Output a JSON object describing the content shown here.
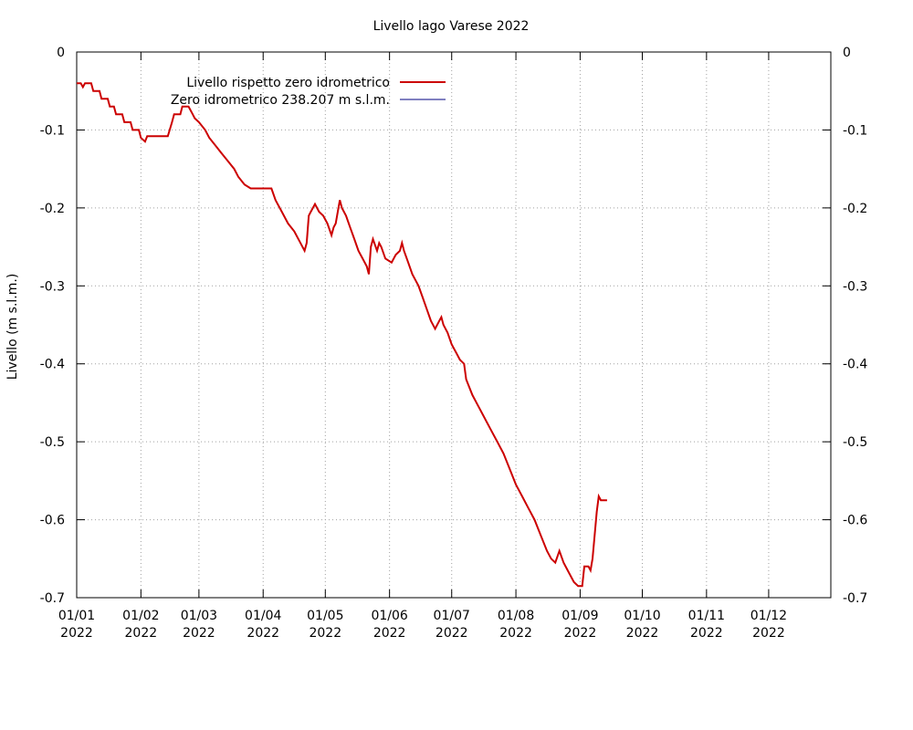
{
  "chart_data": {
    "type": "line",
    "title": "Livello lago Varese 2022",
    "ylabel": "Livello (m s.l.m.)",
    "xlabel": "",
    "ylim": [
      -0.7,
      0
    ],
    "xlim": [
      "2022-01-01",
      "2022-12-31"
    ],
    "y_ticks": [
      "0",
      "-0.1",
      "-0.2",
      "-0.3",
      "-0.4",
      "-0.5",
      "-0.6",
      "-0.7"
    ],
    "y_tick_values": [
      0,
      -0.1,
      -0.2,
      -0.3,
      -0.4,
      -0.5,
      -0.6,
      -0.7
    ],
    "x_ticks": [
      {
        "date": "2022-01-01",
        "label1": "01/01",
        "label2": "2022"
      },
      {
        "date": "2022-02-01",
        "label1": "01/02",
        "label2": "2022"
      },
      {
        "date": "2022-03-01",
        "label1": "01/03",
        "label2": "2022"
      },
      {
        "date": "2022-04-01",
        "label1": "01/04",
        "label2": "2022"
      },
      {
        "date": "2022-05-01",
        "label1": "01/05",
        "label2": "2022"
      },
      {
        "date": "2022-06-01",
        "label1": "01/06",
        "label2": "2022"
      },
      {
        "date": "2022-07-01",
        "label1": "01/07",
        "label2": "2022"
      },
      {
        "date": "2022-08-01",
        "label1": "01/08",
        "label2": "2022"
      },
      {
        "date": "2022-09-01",
        "label1": "01/09",
        "label2": "2022"
      },
      {
        "date": "2022-10-01",
        "label1": "01/10",
        "label2": "2022"
      },
      {
        "date": "2022-11-01",
        "label1": "01/11",
        "label2": "2022"
      },
      {
        "date": "2022-12-01",
        "label1": "01/12",
        "label2": "2022"
      }
    ],
    "grid": true,
    "legend_position": "top-left",
    "series": [
      {
        "name": "Livello rispetto zero idrometrico",
        "color": "#cc0000",
        "points": [
          [
            "2022-01-01",
            -0.04
          ],
          [
            "2022-01-03",
            -0.04
          ],
          [
            "2022-01-04",
            -0.045
          ],
          [
            "2022-01-05",
            -0.04
          ],
          [
            "2022-01-08",
            -0.04
          ],
          [
            "2022-01-09",
            -0.05
          ],
          [
            "2022-01-12",
            -0.05
          ],
          [
            "2022-01-13",
            -0.06
          ],
          [
            "2022-01-16",
            -0.06
          ],
          [
            "2022-01-17",
            -0.07
          ],
          [
            "2022-01-19",
            -0.07
          ],
          [
            "2022-01-20",
            -0.08
          ],
          [
            "2022-01-23",
            -0.08
          ],
          [
            "2022-01-24",
            -0.09
          ],
          [
            "2022-01-27",
            -0.09
          ],
          [
            "2022-01-28",
            -0.1
          ],
          [
            "2022-01-31",
            -0.1
          ],
          [
            "2022-02-01",
            -0.11
          ],
          [
            "2022-02-03",
            -0.115
          ],
          [
            "2022-02-04",
            -0.108
          ],
          [
            "2022-02-14",
            -0.108
          ],
          [
            "2022-02-16",
            -0.09
          ],
          [
            "2022-02-17",
            -0.08
          ],
          [
            "2022-02-20",
            -0.08
          ],
          [
            "2022-02-21",
            -0.07
          ],
          [
            "2022-02-24",
            -0.07
          ],
          [
            "2022-02-26",
            -0.08
          ],
          [
            "2022-02-27",
            -0.085
          ],
          [
            "2022-03-01",
            -0.09
          ],
          [
            "2022-03-04",
            -0.1
          ],
          [
            "2022-03-06",
            -0.11
          ],
          [
            "2022-03-09",
            -0.12
          ],
          [
            "2022-03-12",
            -0.13
          ],
          [
            "2022-03-15",
            -0.14
          ],
          [
            "2022-03-18",
            -0.15
          ],
          [
            "2022-03-20",
            -0.16
          ],
          [
            "2022-03-23",
            -0.17
          ],
          [
            "2022-03-26",
            -0.175
          ],
          [
            "2022-04-05",
            -0.175
          ],
          [
            "2022-04-07",
            -0.19
          ],
          [
            "2022-04-10",
            -0.205
          ],
          [
            "2022-04-13",
            -0.22
          ],
          [
            "2022-04-16",
            -0.23
          ],
          [
            "2022-04-19",
            -0.245
          ],
          [
            "2022-04-21",
            -0.255
          ],
          [
            "2022-04-22",
            -0.245
          ],
          [
            "2022-04-23",
            -0.21
          ],
          [
            "2022-04-24",
            -0.205
          ],
          [
            "2022-04-26",
            -0.195
          ],
          [
            "2022-04-28",
            -0.205
          ],
          [
            "2022-04-30",
            -0.21
          ],
          [
            "2022-05-02",
            -0.22
          ],
          [
            "2022-05-04",
            -0.235
          ],
          [
            "2022-05-05",
            -0.225
          ],
          [
            "2022-05-06",
            -0.22
          ],
          [
            "2022-05-08",
            -0.19
          ],
          [
            "2022-05-09",
            -0.2
          ],
          [
            "2022-05-11",
            -0.21
          ],
          [
            "2022-05-13",
            -0.225
          ],
          [
            "2022-05-15",
            -0.24
          ],
          [
            "2022-05-17",
            -0.255
          ],
          [
            "2022-05-19",
            -0.265
          ],
          [
            "2022-05-21",
            -0.275
          ],
          [
            "2022-05-22",
            -0.285
          ],
          [
            "2022-05-23",
            -0.25
          ],
          [
            "2022-05-24",
            -0.24
          ],
          [
            "2022-05-26",
            -0.255
          ],
          [
            "2022-05-27",
            -0.245
          ],
          [
            "2022-05-28",
            -0.25
          ],
          [
            "2022-05-30",
            -0.265
          ],
          [
            "2022-06-02",
            -0.27
          ],
          [
            "2022-06-04",
            -0.26
          ],
          [
            "2022-06-06",
            -0.255
          ],
          [
            "2022-06-07",
            -0.245
          ],
          [
            "2022-06-08",
            -0.255
          ],
          [
            "2022-06-10",
            -0.27
          ],
          [
            "2022-06-12",
            -0.285
          ],
          [
            "2022-06-15",
            -0.3
          ],
          [
            "2022-06-17",
            -0.315
          ],
          [
            "2022-06-19",
            -0.33
          ],
          [
            "2022-06-21",
            -0.345
          ],
          [
            "2022-06-23",
            -0.355
          ],
          [
            "2022-06-25",
            -0.345
          ],
          [
            "2022-06-26",
            -0.34
          ],
          [
            "2022-06-27",
            -0.35
          ],
          [
            "2022-06-29",
            -0.36
          ],
          [
            "2022-07-01",
            -0.375
          ],
          [
            "2022-07-03",
            -0.385
          ],
          [
            "2022-07-05",
            -0.395
          ],
          [
            "2022-07-07",
            -0.4
          ],
          [
            "2022-07-08",
            -0.42
          ],
          [
            "2022-07-11",
            -0.44
          ],
          [
            "2022-07-14",
            -0.455
          ],
          [
            "2022-07-17",
            -0.47
          ],
          [
            "2022-07-20",
            -0.485
          ],
          [
            "2022-07-23",
            -0.5
          ],
          [
            "2022-07-26",
            -0.515
          ],
          [
            "2022-07-29",
            -0.535
          ],
          [
            "2022-08-01",
            -0.555
          ],
          [
            "2022-08-04",
            -0.57
          ],
          [
            "2022-08-07",
            -0.585
          ],
          [
            "2022-08-10",
            -0.6
          ],
          [
            "2022-08-13",
            -0.62
          ],
          [
            "2022-08-16",
            -0.64
          ],
          [
            "2022-08-18",
            -0.65
          ],
          [
            "2022-08-20",
            -0.655
          ],
          [
            "2022-08-22",
            -0.64
          ],
          [
            "2022-08-24",
            -0.655
          ],
          [
            "2022-08-26",
            -0.665
          ],
          [
            "2022-08-29",
            -0.68
          ],
          [
            "2022-08-31",
            -0.685
          ],
          [
            "2022-09-02",
            -0.685
          ],
          [
            "2022-09-03",
            -0.66
          ],
          [
            "2022-09-05",
            -0.66
          ],
          [
            "2022-09-06",
            -0.665
          ],
          [
            "2022-09-07",
            -0.65
          ],
          [
            "2022-09-08",
            -0.62
          ],
          [
            "2022-09-09",
            -0.59
          ],
          [
            "2022-09-10",
            -0.57
          ],
          [
            "2022-09-11",
            -0.575
          ],
          [
            "2022-09-14",
            -0.575
          ]
        ]
      },
      {
        "name": "Zero idrometrico 238.207 m s.l.m.",
        "color": "#000080",
        "points": []
      }
    ]
  }
}
